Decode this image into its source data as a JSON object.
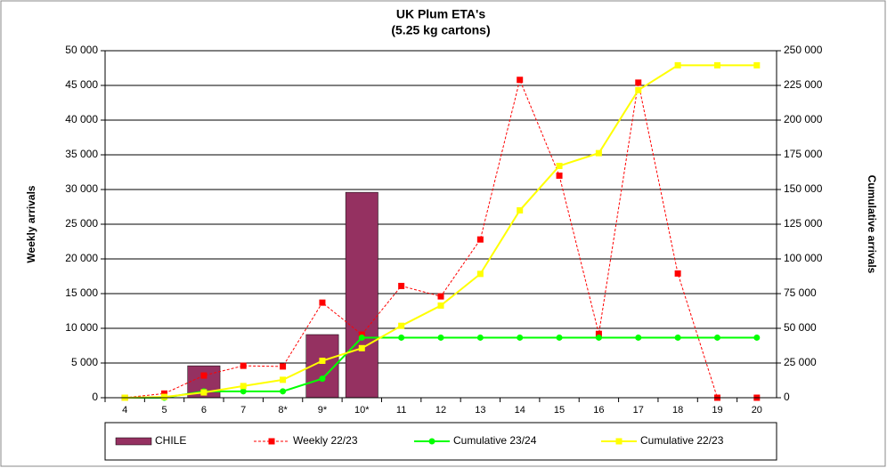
{
  "chart_data": {
    "type": "bar",
    "title": "UK Plum ETA's",
    "subtitle": "(5.25 kg cartons)",
    "ylabel": "Weekly arrivals",
    "y2label": "Cumulative arrivals",
    "categories": [
      "4",
      "5",
      "6",
      "7",
      "8*",
      "9*",
      "10*",
      "11",
      "12",
      "13",
      "14",
      "15",
      "16",
      "17",
      "18",
      "19",
      "20"
    ],
    "ylim": [
      0,
      50000
    ],
    "yticks": [
      0,
      {
        "value": 5000,
        "label": "5 000"
      },
      {
        "value": 10000,
        "label": "10 000"
      },
      {
        "value": 15000,
        "label": "15 000"
      },
      {
        "value": 20000,
        "label": "20 000"
      },
      {
        "value": 25000,
        "label": "25 000"
      },
      {
        "value": 30000,
        "label": "30 000"
      },
      {
        "value": 35000,
        "label": "35 000"
      },
      {
        "value": 40000,
        "label": "40 000"
      },
      {
        "value": 45000,
        "label": "45 000"
      },
      {
        "value": 50000,
        "label": "50 000"
      }
    ],
    "y2lim": [
      0,
      250000
    ],
    "y2ticks": [
      0,
      {
        "value": 25000,
        "label": "25 000"
      },
      {
        "value": 50000,
        "label": "50 000"
      },
      {
        "value": 75000,
        "label": "75 000"
      },
      {
        "value": 100000,
        "label": "100 000"
      },
      {
        "value": 125000,
        "label": "125 000"
      },
      {
        "value": 150000,
        "label": "150 000"
      },
      {
        "value": 175000,
        "label": "175 000"
      },
      {
        "value": 200000,
        "label": "200 000"
      },
      {
        "value": 225000,
        "label": "225 000"
      },
      {
        "value": 250000,
        "label": "250 000"
      }
    ],
    "grid": true,
    "legend": "bottom",
    "series": [
      {
        "name": "CHILE",
        "type": "bar",
        "color": "#953161",
        "values": [
          null,
          null,
          4600,
          null,
          null,
          9100,
          29600,
          null,
          null,
          null,
          null,
          null,
          null,
          null,
          null,
          null,
          null
        ]
      },
      {
        "name": "Weekly 22/23",
        "type": "line",
        "color": "#ff0000",
        "dashed": true,
        "marker": "square",
        "values": [
          0,
          600,
          3200,
          4600,
          4500,
          13700,
          9100,
          16100,
          14600,
          22800,
          45800,
          32000,
          9200,
          45400,
          17900,
          0,
          0
        ]
      },
      {
        "name": "Cumulative 23/24",
        "type": "line",
        "axis": "y2",
        "color": "#00ff00",
        "marker": "circle",
        "values": [
          0,
          0,
          4600,
          4600,
          4600,
          13700,
          43300,
          43300,
          43300,
          43300,
          43300,
          43300,
          43300,
          43300,
          43300,
          43300,
          43300
        ]
      },
      {
        "name": "Cumulative 22/23",
        "type": "line",
        "axis": "y2",
        "color": "#ffff00",
        "marker": "square",
        "values": [
          0,
          600,
          3800,
          8400,
          12900,
          26600,
          35700,
          51800,
          66400,
          89200,
          135000,
          167000,
          176200,
          221600,
          239500,
          239500,
          239500
        ]
      }
    ]
  }
}
